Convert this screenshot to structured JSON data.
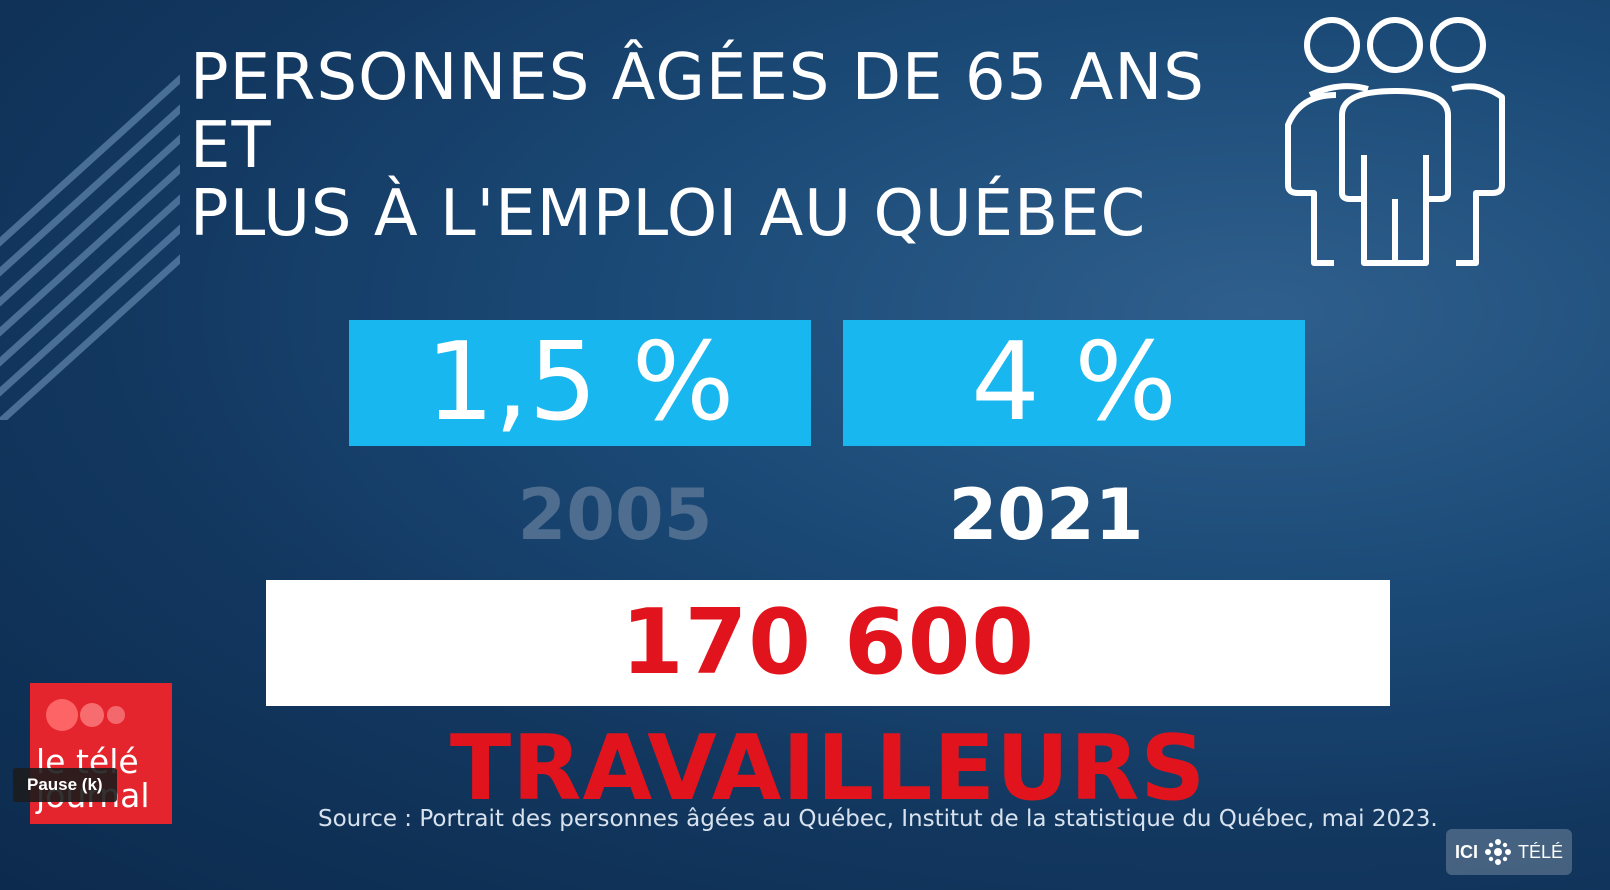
{
  "title": {
    "line1": "PERSONNES ÂGÉES DE  65 ANS ET",
    "line2": "PLUS À L'EMPLOI AU QUÉBEC"
  },
  "stats": [
    {
      "value": "1,5 %",
      "year": "2005"
    },
    {
      "value": "4 %",
      "year": "2021"
    }
  ],
  "workers": "170 600 TRAVAILLEURS",
  "source": "Source : Portrait des personnes âgées au Québec, Institut de la statistique du Québec, mai 2023.",
  "show_logo": {
    "line1": "le télé",
    "line2": "journal"
  },
  "player": {
    "pause_tooltip": "Pause (k)"
  },
  "channel": {
    "ici": "ICI",
    "name": "TÉLÉ"
  },
  "colors": {
    "background": "#1b4a77",
    "stat_box": "#19b7ef",
    "highlight_red": "#e1141d",
    "year_dim": "#4e6d8f"
  },
  "icons": [
    "people-group-icon",
    "radio-canada-gem-icon"
  ]
}
